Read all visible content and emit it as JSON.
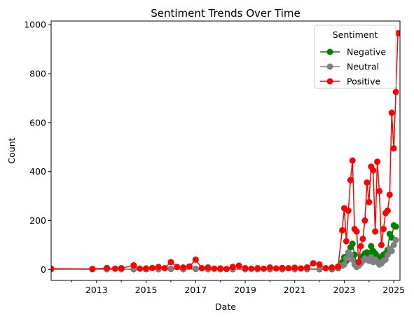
{
  "chart_data": {
    "type": "line",
    "title": "Sentiment Trends Over Time",
    "xlabel": "Date",
    "ylabel": "Count",
    "x_ticks": [
      "2013",
      "2015",
      "2017",
      "2019",
      "2021",
      "2023",
      "2025"
    ],
    "y_ticks": [
      0,
      200,
      400,
      600,
      800,
      1000
    ],
    "xlim": [
      "2011-03",
      "2025-04"
    ],
    "ylim": [
      -45,
      1015
    ],
    "grid": false,
    "legend": {
      "title": "Sentiment",
      "position": "top-right"
    },
    "series": [
      {
        "name": "Negative",
        "color": "#008000",
        "points": [
          [
            "2011-03",
            1
          ],
          [
            "2012-11",
            1
          ],
          [
            "2013-06",
            1
          ],
          [
            "2014-01",
            1
          ],
          [
            "2014-07",
            1
          ],
          [
            "2015-01",
            1
          ],
          [
            "2015-07",
            1
          ],
          [
            "2016-01",
            2
          ],
          [
            "2016-07",
            1
          ],
          [
            "2017-01",
            2
          ],
          [
            "2017-07",
            1
          ],
          [
            "2018-01",
            1
          ],
          [
            "2018-07",
            1
          ],
          [
            "2019-01",
            1
          ],
          [
            "2019-07",
            1
          ],
          [
            "2020-01",
            1
          ],
          [
            "2020-07",
            1
          ],
          [
            "2021-01",
            1
          ],
          [
            "2021-07",
            1
          ],
          [
            "2022-01",
            1
          ],
          [
            "2022-07",
            1
          ],
          [
            "2022-10",
            5
          ],
          [
            "2022-12",
            30
          ],
          [
            "2023-01",
            50
          ],
          [
            "2023-02",
            35
          ],
          [
            "2023-03",
            60
          ],
          [
            "2023-04",
            90
          ],
          [
            "2023-05",
            105
          ],
          [
            "2023-06",
            60
          ],
          [
            "2023-07",
            25
          ],
          [
            "2023-08",
            20
          ],
          [
            "2023-09",
            40
          ],
          [
            "2023-10",
            55
          ],
          [
            "2023-11",
            65
          ],
          [
            "2023-12",
            70
          ],
          [
            "2024-01",
            60
          ],
          [
            "2024-02",
            95
          ],
          [
            "2024-03",
            75
          ],
          [
            "2024-04",
            65
          ],
          [
            "2024-05",
            55
          ],
          [
            "2024-06",
            45
          ],
          [
            "2024-07",
            40
          ],
          [
            "2024-08",
            60
          ],
          [
            "2024-09",
            65
          ],
          [
            "2024-10",
            80
          ],
          [
            "2024-11",
            145
          ],
          [
            "2024-12",
            130
          ],
          [
            "2025-01",
            180
          ],
          [
            "2025-02",
            175
          ]
        ]
      },
      {
        "name": "Neutral",
        "color": "#808080",
        "points": [
          [
            "2011-03",
            2
          ],
          [
            "2012-11",
            1
          ],
          [
            "2013-06",
            2
          ],
          [
            "2014-01",
            1
          ],
          [
            "2014-07",
            2
          ],
          [
            "2015-01",
            2
          ],
          [
            "2015-07",
            2
          ],
          [
            "2016-01",
            3
          ],
          [
            "2016-07",
            2
          ],
          [
            "2017-01",
            3
          ],
          [
            "2017-07",
            2
          ],
          [
            "2018-01",
            2
          ],
          [
            "2018-07",
            2
          ],
          [
            "2019-01",
            2
          ],
          [
            "2019-07",
            2
          ],
          [
            "2020-01",
            2
          ],
          [
            "2020-07",
            2
          ],
          [
            "2021-01",
            2
          ],
          [
            "2021-07",
            2
          ],
          [
            "2022-01",
            3
          ],
          [
            "2022-07",
            3
          ],
          [
            "2022-10",
            8
          ],
          [
            "2022-12",
            15
          ],
          [
            "2023-01",
            20
          ],
          [
            "2023-02",
            45
          ],
          [
            "2023-03",
            70
          ],
          [
            "2023-04",
            60
          ],
          [
            "2023-05",
            40
          ],
          [
            "2023-06",
            20
          ],
          [
            "2023-07",
            10
          ],
          [
            "2023-08",
            15
          ],
          [
            "2023-09",
            25
          ],
          [
            "2023-10",
            35
          ],
          [
            "2023-11",
            45
          ],
          [
            "2023-12",
            40
          ],
          [
            "2024-01",
            35
          ],
          [
            "2024-02",
            50
          ],
          [
            "2024-03",
            30
          ],
          [
            "2024-04",
            40
          ],
          [
            "2024-05",
            30
          ],
          [
            "2024-06",
            20
          ],
          [
            "2024-07",
            25
          ],
          [
            "2024-08",
            35
          ],
          [
            "2024-09",
            40
          ],
          [
            "2024-10",
            60
          ],
          [
            "2024-11",
            85
          ],
          [
            "2024-12",
            75
          ],
          [
            "2025-01",
            100
          ],
          [
            "2025-02",
            120
          ]
        ]
      },
      {
        "name": "Positive",
        "color": "#ff0000",
        "points": [
          [
            "2011-03",
            3
          ],
          [
            "2012-11",
            2
          ],
          [
            "2013-06",
            6
          ],
          [
            "2013-10",
            3
          ],
          [
            "2014-01",
            5
          ],
          [
            "2014-07",
            17
          ],
          [
            "2014-10",
            3
          ],
          [
            "2015-01",
            4
          ],
          [
            "2015-04",
            6
          ],
          [
            "2015-07",
            10
          ],
          [
            "2015-10",
            5
          ],
          [
            "2016-01",
            30
          ],
          [
            "2016-04",
            10
          ],
          [
            "2016-07",
            8
          ],
          [
            "2016-10",
            12
          ],
          [
            "2017-01",
            40
          ],
          [
            "2017-04",
            5
          ],
          [
            "2017-07",
            8
          ],
          [
            "2017-10",
            3
          ],
          [
            "2018-01",
            4
          ],
          [
            "2018-04",
            2
          ],
          [
            "2018-07",
            10
          ],
          [
            "2018-10",
            15
          ],
          [
            "2019-01",
            5
          ],
          [
            "2019-04",
            3
          ],
          [
            "2019-07",
            5
          ],
          [
            "2019-10",
            3
          ],
          [
            "2020-01",
            8
          ],
          [
            "2020-04",
            4
          ],
          [
            "2020-07",
            6
          ],
          [
            "2020-10",
            5
          ],
          [
            "2021-01",
            7
          ],
          [
            "2021-04",
            4
          ],
          [
            "2021-07",
            8
          ],
          [
            "2021-10",
            25
          ],
          [
            "2022-01",
            20
          ],
          [
            "2022-04",
            5
          ],
          [
            "2022-07",
            8
          ],
          [
            "2022-10",
            12
          ],
          [
            "2022-12",
            160
          ],
          [
            "2023-01",
            250
          ],
          [
            "2023-02",
            115
          ],
          [
            "2023-03",
            240
          ],
          [
            "2023-04",
            365
          ],
          [
            "2023-05",
            445
          ],
          [
            "2023-06",
            165
          ],
          [
            "2023-07",
            155
          ],
          [
            "2023-08",
            30
          ],
          [
            "2023-09",
            95
          ],
          [
            "2023-10",
            125
          ],
          [
            "2023-11",
            200
          ],
          [
            "2023-12",
            355
          ],
          [
            "2024-01",
            275
          ],
          [
            "2024-02",
            420
          ],
          [
            "2024-03",
            405
          ],
          [
            "2024-04",
            155
          ],
          [
            "2024-05",
            440
          ],
          [
            "2024-06",
            320
          ],
          [
            "2024-07",
            100
          ],
          [
            "2024-08",
            165
          ],
          [
            "2024-09",
            230
          ],
          [
            "2024-10",
            240
          ],
          [
            "2024-11",
            305
          ],
          [
            "2024-12",
            640
          ],
          [
            "2025-01",
            495
          ],
          [
            "2025-02",
            725
          ],
          [
            "2025-03",
            965
          ]
        ]
      }
    ]
  }
}
